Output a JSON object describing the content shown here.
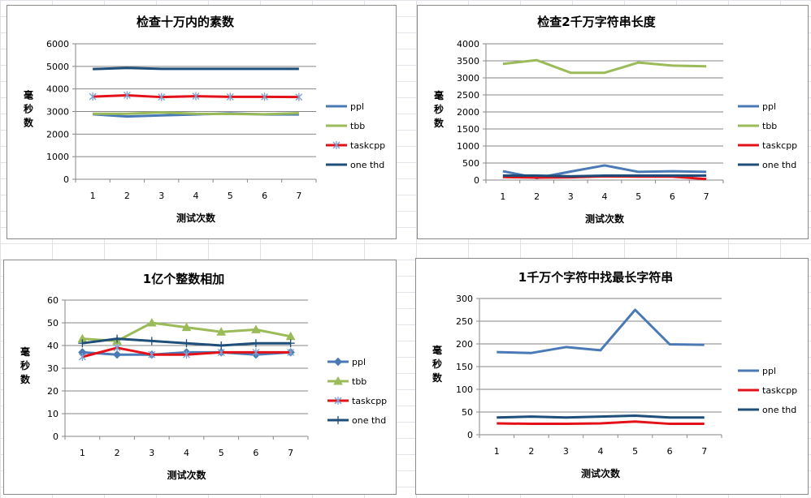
{
  "chart_data": [
    {
      "type": "line",
      "title": "检查十万内的素数",
      "xlabel": "测试次数",
      "ylabel": "毫秒数",
      "categories": [
        "1",
        "2",
        "3",
        "4",
        "5",
        "6",
        "7"
      ],
      "ylim": [
        0,
        6000
      ],
      "yticks": [
        0,
        1000,
        2000,
        3000,
        4000,
        5000,
        6000
      ],
      "grid": true,
      "legend": "right",
      "series": [
        {
          "name": "ppl",
          "color": "#4a7ab5",
          "marker": "none",
          "values": [
            2880,
            2780,
            2830,
            2870,
            2920,
            2870,
            2870
          ]
        },
        {
          "name": "tbb",
          "color": "#9bbb59",
          "marker": "none",
          "values": [
            2900,
            2900,
            2960,
            2900,
            2890,
            2880,
            2930
          ]
        },
        {
          "name": "taskcpp",
          "color": "#e3121a",
          "marker": "asterisk",
          "values": [
            3660,
            3720,
            3640,
            3680,
            3650,
            3650,
            3640
          ]
        },
        {
          "name": "one thd",
          "color": "#1f4e79",
          "marker": "none",
          "values": [
            4880,
            4930,
            4890,
            4890,
            4890,
            4890,
            4890
          ]
        }
      ]
    },
    {
      "type": "line",
      "title": "检查2千万字符串长度",
      "xlabel": "测试次数",
      "ylabel": "毫秒数",
      "categories": [
        "1",
        "2",
        "3",
        "4",
        "5",
        "6",
        "7"
      ],
      "ylim": [
        0,
        4000
      ],
      "yticks": [
        0,
        500,
        1000,
        1500,
        2000,
        2500,
        3000,
        3500,
        4000
      ],
      "grid": true,
      "legend": "right",
      "series": [
        {
          "name": "ppl",
          "color": "#4a7ab5",
          "marker": "none",
          "values": [
            260,
            60,
            250,
            430,
            240,
            260,
            240
          ]
        },
        {
          "name": "tbb",
          "color": "#9bbb59",
          "marker": "none",
          "values": [
            3410,
            3520,
            3150,
            3150,
            3450,
            3360,
            3340
          ]
        },
        {
          "name": "taskcpp",
          "color": "#e3121a",
          "marker": "none",
          "values": [
            90,
            70,
            80,
            110,
            100,
            100,
            30
          ]
        },
        {
          "name": "one thd",
          "color": "#1f4e79",
          "marker": "none",
          "values": [
            130,
            130,
            110,
            130,
            130,
            130,
            130
          ]
        }
      ]
    },
    {
      "type": "line",
      "title": "1亿个整数相加",
      "xlabel": "测试次数",
      "ylabel": "毫秒数",
      "categories": [
        "1",
        "2",
        "3",
        "4",
        "5",
        "6",
        "7"
      ],
      "ylim": [
        0,
        60
      ],
      "yticks": [
        0,
        10,
        20,
        30,
        40,
        50,
        60
      ],
      "grid": true,
      "legend": "right",
      "series": [
        {
          "name": "ppl",
          "color": "#4a7ab5",
          "marker": "diamond",
          "values": [
            37,
            36,
            36,
            37,
            37,
            36,
            37
          ]
        },
        {
          "name": "tbb",
          "color": "#9bbb59",
          "marker": "triangle",
          "values": [
            43,
            42,
            50,
            48,
            46,
            47,
            44
          ]
        },
        {
          "name": "taskcpp",
          "color": "#e3121a",
          "marker": "asterisk",
          "values": [
            35,
            39,
            36,
            36,
            37,
            37,
            37
          ]
        },
        {
          "name": "one thd",
          "color": "#1f4e79",
          "marker": "plus",
          "values": [
            41,
            43,
            42,
            41,
            40,
            41,
            41
          ]
        }
      ]
    },
    {
      "type": "line",
      "title": "1千万个字符中找最长字符串",
      "xlabel": "测试次数",
      "ylabel": "毫秒数",
      "categories": [
        "1",
        "2",
        "3",
        "4",
        "5",
        "6",
        "7"
      ],
      "ylim": [
        0,
        300
      ],
      "yticks": [
        0,
        50,
        100,
        150,
        200,
        250,
        300
      ],
      "grid": true,
      "legend": "right",
      "series": [
        {
          "name": "ppl",
          "color": "#4a7ab5",
          "marker": "none",
          "values": [
            182,
            180,
            193,
            186,
            275,
            199,
            198
          ]
        },
        {
          "name": "taskcpp",
          "color": "#e3121a",
          "marker": "none",
          "values": [
            25,
            24,
            24,
            25,
            29,
            24,
            24
          ]
        },
        {
          "name": "one thd",
          "color": "#1f4e79",
          "marker": "none",
          "values": [
            38,
            40,
            38,
            40,
            42,
            38,
            38
          ]
        }
      ]
    }
  ]
}
